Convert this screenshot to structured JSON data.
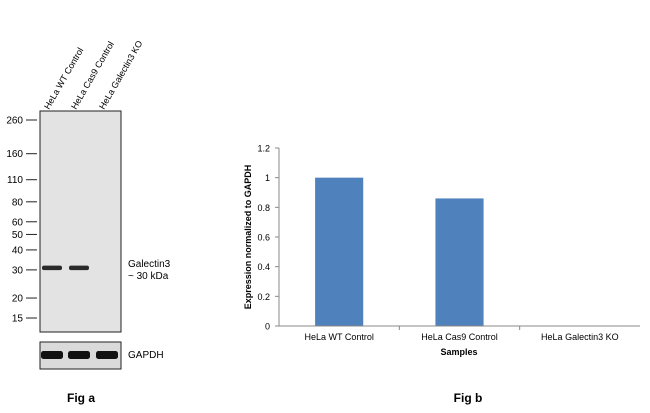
{
  "blot": {
    "lanes": [
      "HeLa WT Control",
      "HeLa Cas9 Control",
      "HeLa Galectin3 KO"
    ],
    "markers": [
      260,
      160,
      110,
      80,
      60,
      50,
      40,
      30,
      20,
      15
    ],
    "galectin_band_present": [
      true,
      true,
      false
    ],
    "band_label_line1": "Galectin3",
    "band_label_line2": "~ 30 kDa",
    "loading_control_label": "GAPDH",
    "caption": "Fig a"
  },
  "chart_data": {
    "type": "bar",
    "categories": [
      "HeLa WT Control",
      "HeLa Cas9 Control",
      "HeLa Galectin3 KO"
    ],
    "values": [
      1.0,
      0.86,
      0.0
    ],
    "xlabel": "Samples",
    "ylabel": "Expression  normalized to GAPDH",
    "ylim": [
      0,
      1.2
    ],
    "yticks": [
      0,
      0.2,
      0.4,
      0.6,
      0.8,
      1,
      1.2
    ],
    "bar_color": "#4f81bd",
    "grid": false
  },
  "chart_caption": "Fig b"
}
